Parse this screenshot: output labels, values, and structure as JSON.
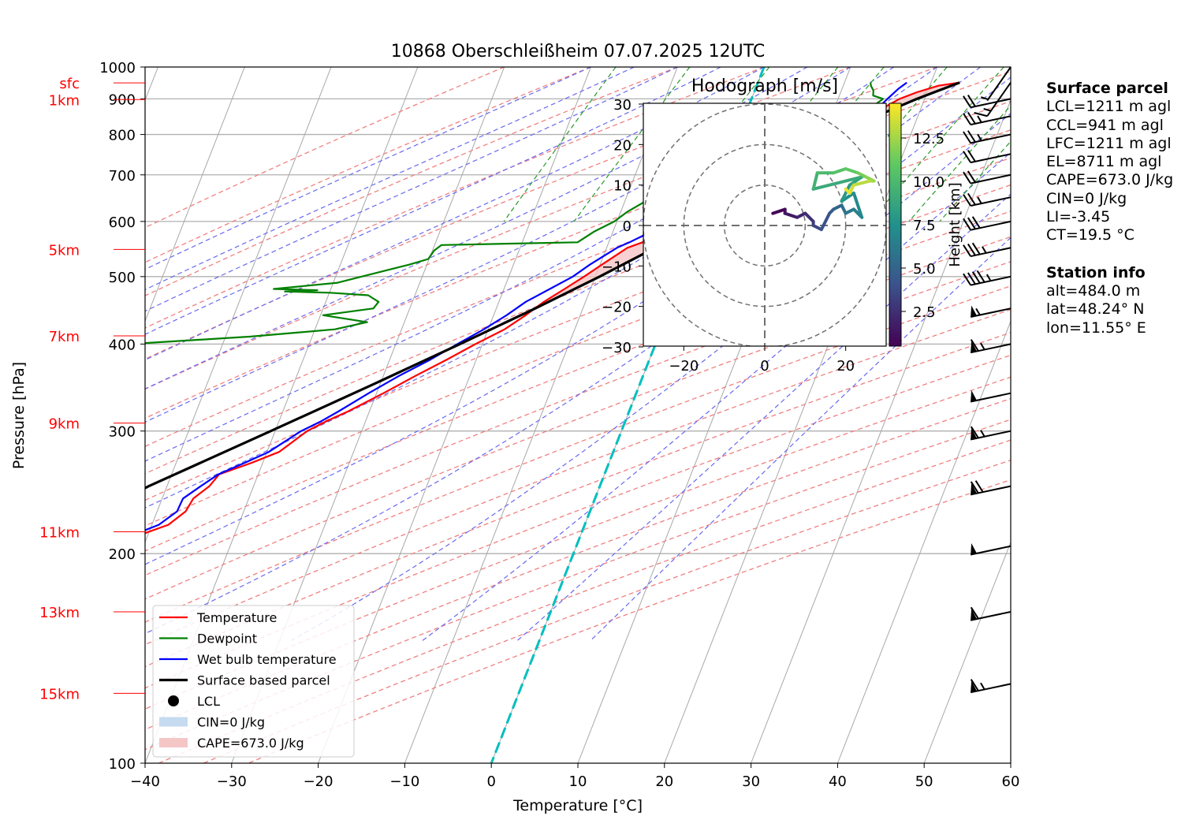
{
  "title": "10868 Oberschleißheim 07.07.2025 12UTC",
  "axes": {
    "xlabel": "Temperature [°C]",
    "ylabel": "Pressure [hPa]",
    "xlim": [
      -40,
      60
    ],
    "ylim": [
      1000,
      100
    ],
    "x_ticks": [
      "−40",
      "−30",
      "−20",
      "−10",
      "0",
      "10",
      "20",
      "30",
      "40",
      "50",
      "60"
    ],
    "y_ticks": [
      "100",
      "200",
      "300",
      "400",
      "500",
      "600",
      "700",
      "800",
      "900",
      "1000"
    ],
    "height_labels": [
      {
        "label": "15km",
        "p": 126
      },
      {
        "label": "13km",
        "p": 165
      },
      {
        "label": "11km",
        "p": 215
      },
      {
        "label": "9km",
        "p": 308
      },
      {
        "label": "7km",
        "p": 411
      },
      {
        "label": "5km",
        "p": 547
      },
      {
        "label": "1km",
        "p": 898
      },
      {
        "label": "sfc",
        "p": 949
      }
    ]
  },
  "legend": [
    {
      "label": "Temperature",
      "color": "#ff0000",
      "kind": "line"
    },
    {
      "label": "Dewpoint",
      "color": "#008000",
      "kind": "line"
    },
    {
      "label": "Wet bulb temperature",
      "color": "#0000ff",
      "kind": "line"
    },
    {
      "label": "Surface based parcel",
      "color": "#000000",
      "kind": "line"
    },
    {
      "label": "LCL",
      "color": "#000000",
      "kind": "dot"
    },
    {
      "label": "CIN=0 J/kg",
      "color": "#c6dbef",
      "kind": "patch"
    },
    {
      "label": "CAPE=673.0 J/kg",
      "color": "#f5c6c6",
      "kind": "patch"
    }
  ],
  "hodograph": {
    "title": "Hodograph [m/s]",
    "ticks": [
      "−20",
      "0",
      "20"
    ],
    "y_ticks": [
      "30",
      "20",
      "10",
      "0",
      "−10",
      "−20",
      "−30"
    ],
    "colorbar_label": "Height [km]",
    "colorbar_ticks": [
      "2.5",
      "5.0",
      "7.5",
      "10.0",
      "12.5"
    ]
  },
  "surface_parcel": {
    "header": "Surface parcel",
    "lines": [
      "LCL=1211 m agl",
      "CCL=941 m agl",
      "LFC=1211 m agl",
      "EL=8711 m agl",
      "CAPE=673.0 J/kg",
      "CIN=0 J/kg",
      "LI=-3.45",
      "CT=19.5 °C"
    ]
  },
  "station_info": {
    "header": "Station info",
    "lines": [
      "alt=484.0 m",
      "lat=48.24° N",
      "lon=11.55° E"
    ]
  },
  "chart_data": [
    {
      "type": "line",
      "chart": "skew-T log-p",
      "title": "10868 Oberschleißheim 07.07.2025 12UTC",
      "xlabel": "Temperature [°C]",
      "ylabel": "Pressure [hPa]",
      "xlim": [
        -40,
        60
      ],
      "ylim": [
        1000,
        100
      ],
      "series": [
        {
          "name": "Temperature",
          "p": [
            950,
            940,
            920,
            900,
            880,
            860,
            850,
            830,
            800,
            750,
            720,
            700,
            680,
            650,
            620,
            600,
            580,
            560,
            550,
            520,
            500,
            480,
            460,
            440,
            420,
            400,
            380,
            360,
            340,
            320,
            310,
            300,
            280,
            270,
            260,
            250,
            240,
            230,
            220,
            210,
            200,
            190,
            180,
            170,
            160,
            150,
            140,
            130,
            125
          ],
          "values": [
            23.3,
            21,
            18.8,
            17.1,
            16,
            15.2,
            15.3,
            13.8,
            11.7,
            8.7,
            6.7,
            5.2,
            4.1,
            1.3,
            -1.2,
            -2.8,
            -4.4,
            -6.1,
            -7.6,
            -9.8,
            -11.3,
            -13,
            -14.8,
            -16.3,
            -18.1,
            -20.8,
            -23.4,
            -26.3,
            -29.2,
            -32.5,
            -34.5,
            -36.3,
            -38.6,
            -41.3,
            -44.5,
            -45.1,
            -46.4,
            -46.7,
            -48.1,
            -52,
            -54.7,
            -55.2,
            -55.6,
            -58.6,
            -60.3,
            -63.1,
            -64.9,
            -67.8,
            -69.7
          ]
        },
        {
          "name": "Dewpoint",
          "p": [
            950,
            940,
            925,
            910,
            900,
            880,
            860,
            840,
            820,
            800,
            780,
            760,
            740,
            720,
            700,
            680,
            660,
            650,
            620,
            600,
            580,
            560,
            555,
            545,
            530,
            520,
            500,
            490,
            480,
            478,
            476,
            474,
            470,
            460,
            450,
            440,
            430,
            420,
            410,
            400,
            390,
            380,
            370,
            360,
            350,
            340,
            330,
            320,
            310,
            300,
            290,
            280,
            270,
            260,
            250,
            240,
            230,
            220,
            210,
            200,
            190,
            180,
            170,
            160,
            150,
            140,
            130,
            125
          ],
          "values": [
            13,
            13.2,
            13.7,
            13.9,
            15.2,
            14.4,
            15.3,
            13.8,
            10.5,
            7.9,
            4.1,
            0.8,
            -1.5,
            -4.3,
            -5.2,
            -7.3,
            -8.2,
            -7,
            -9.2,
            -10.3,
            -12.2,
            -13.6,
            -29.2,
            -29.8,
            -30.1,
            -32.1,
            -37,
            -39.5,
            -46.6,
            -41.5,
            -45.2,
            -39.9,
            -35.4,
            -33.9,
            -34.2,
            -39.7,
            -34.3,
            -37.7,
            -47.1,
            -60.8,
            -59.4,
            -58.7,
            -60.2,
            -59.3,
            -59.3,
            -60,
            -58.6,
            -59.3,
            -62.4,
            -64.2,
            -64.2,
            -68.1,
            -68.8,
            -70,
            -73.2,
            -71.6,
            -75.2,
            -75.8,
            -80.1,
            -85.8,
            -84.3,
            -82.9,
            -82.8,
            -81.8,
            -81.2,
            -80.4,
            -79.2,
            -80
          ]
        },
        {
          "name": "Wet bulb temperature",
          "p": [
            950,
            930,
            900,
            880,
            860,
            850,
            830,
            800,
            780,
            760,
            740,
            720,
            700,
            680,
            660,
            650,
            620,
            600,
            580,
            560,
            550,
            520,
            500,
            480,
            460,
            440,
            420,
            400,
            380,
            360,
            340,
            320,
            310,
            300,
            280,
            270,
            260,
            250,
            240,
            230,
            220,
            210,
            200,
            190,
            180,
            170,
            160,
            150,
            140,
            130,
            125
          ],
          "values": [
            17.2,
            16.5,
            15.7,
            15.2,
            14.8,
            14.4,
            12.8,
            11.3,
            9.7,
            8.3,
            6.8,
            4.7,
            3.1,
            3.6,
            1.2,
            0.3,
            -2.1,
            -3.3,
            -5.6,
            -7.6,
            -8.8,
            -11.2,
            -12.6,
            -14.7,
            -16.9,
            -18.5,
            -20.5,
            -22.9,
            -25.3,
            -28.2,
            -30.9,
            -33.6,
            -35.1,
            -37,
            -39.8,
            -42.1,
            -44.6,
            -46.1,
            -47.6,
            -47.7,
            -49.2,
            -52.7,
            -55.5,
            -56,
            -56.2,
            -59.5,
            -61,
            -63.4,
            -65.8,
            -68.1,
            -70.3
          ]
        },
        {
          "name": "Surface based parcel",
          "p": [
            950,
            900,
            850,
            822,
            800,
            750,
            700,
            650,
            600,
            550,
            500,
            450,
            400,
            350,
            300,
            250,
            200,
            150,
            125
          ],
          "values": [
            23.3,
            19.1,
            15.2,
            13.1,
            12.3,
            9.7,
            6.8,
            3.6,
            -0.2,
            -4.4,
            -9.5,
            -15.5,
            -22.6,
            -30.8,
            -40.5,
            -52.1,
            -64.3,
            -79.5,
            -88.8
          ]
        }
      ],
      "lcl": {
        "p": 822,
        "t": 13.1
      },
      "cape_shading": "CAPE=673.0 J/kg",
      "cin_shading": "CIN=0 J/kg"
    },
    {
      "type": "line",
      "chart": "hodograph",
      "title": "Hodograph [m/s]",
      "xlabel": "",
      "ylabel": "",
      "xlim": [
        -30,
        30
      ],
      "ylim": [
        -30,
        30
      ],
      "colorbar_label": "Height [km]",
      "height_km": [
        0.5,
        1,
        1.5,
        2,
        2.5,
        3,
        3.5,
        4,
        4.5,
        5,
        5.5,
        6,
        6.5,
        7,
        7.5,
        8,
        8.5,
        9,
        9.5,
        10,
        10.5,
        11,
        11.5,
        12,
        12.5,
        13,
        13.5,
        14,
        14.5
      ],
      "u": [
        2,
        5,
        5,
        8,
        10,
        12,
        12,
        14,
        16,
        17,
        19,
        20,
        22,
        24,
        22,
        19,
        21,
        24,
        12,
        13,
        17,
        20,
        23,
        25,
        27,
        26,
        22,
        21,
        20
      ],
      "v": [
        3,
        4,
        3,
        2,
        3,
        1,
        0,
        -1,
        3,
        4,
        5,
        3,
        4,
        2,
        8,
        6,
        10,
        12,
        9,
        13,
        13,
        14,
        13,
        12,
        11,
        11,
        10,
        8,
        9
      ]
    }
  ],
  "wind_barbs": [
    {
      "p": 130,
      "speed_kt": 65
    },
    {
      "p": 165,
      "speed_kt": 60
    },
    {
      "p": 205,
      "speed_kt": 50
    },
    {
      "p": 250,
      "speed_kt": 70
    },
    {
      "p": 300,
      "speed_kt": 65
    },
    {
      "p": 340,
      "speed_kt": 50
    },
    {
      "p": 400,
      "speed_kt": 65
    },
    {
      "p": 450,
      "speed_kt": 55
    },
    {
      "p": 500,
      "speed_kt": 45
    },
    {
      "p": 550,
      "speed_kt": 35
    },
    {
      "p": 600,
      "speed_kt": 30
    },
    {
      "p": 650,
      "speed_kt": 25
    },
    {
      "p": 700,
      "speed_kt": 20
    },
    {
      "p": 750,
      "speed_kt": 20
    },
    {
      "p": 800,
      "speed_kt": 25
    },
    {
      "p": 850,
      "speed_kt": 25
    },
    {
      "p": 900,
      "speed_kt": 20
    },
    {
      "p": 950,
      "speed_kt": 15
    },
    {
      "p": 1000,
      "speed_kt": 5
    }
  ]
}
